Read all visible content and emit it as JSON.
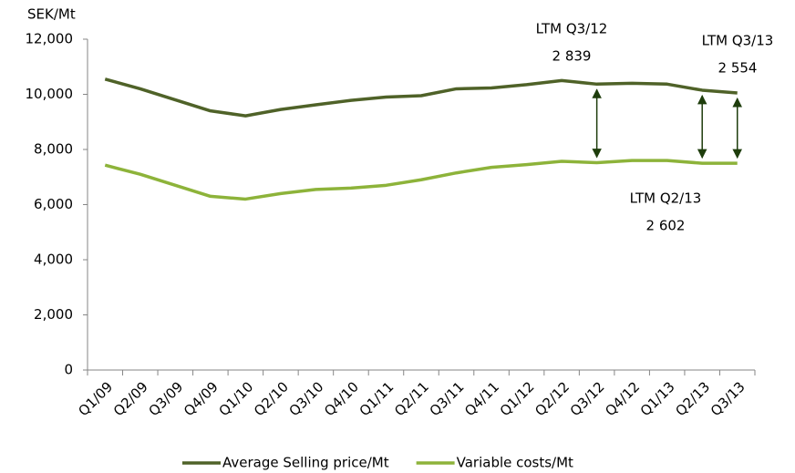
{
  "chart_data": {
    "type": "line",
    "unit_label": "SEK/Mt",
    "categories": [
      "Q1/09",
      "Q2/09",
      "Q3/09",
      "Q4/09",
      "Q1/10",
      "Q2/10",
      "Q3/10",
      "Q4/10",
      "Q1/11",
      "Q2/11",
      "Q3/11",
      "Q4/11",
      "Q1/12",
      "Q2/12",
      "Q3/12",
      "Q4/12",
      "Q1/13",
      "Q2/13",
      "Q3/13"
    ],
    "series": [
      {
        "name": "Average Selling price/Mt",
        "color": "#4f6228",
        "values": [
          10550,
          10200,
          9800,
          9400,
          9220,
          9450,
          9620,
          9780,
          9900,
          9950,
          10200,
          10230,
          10350,
          10500,
          10370,
          10400,
          10370,
          10150,
          10050
        ]
      },
      {
        "name": "Variable costs/Mt",
        "color": "#8db33a",
        "values": [
          7430,
          7100,
          6700,
          6300,
          6200,
          6400,
          6550,
          6600,
          6700,
          6900,
          7150,
          7350,
          7450,
          7570,
          7520,
          7600,
          7600,
          7500,
          7500
        ]
      }
    ],
    "ylim": [
      0,
      12000
    ],
    "yticks": [
      0,
      {
        "value": 2000,
        "label": "2,000"
      },
      {
        "value": 4000,
        "label": "4,000"
      },
      {
        "value": 6000,
        "label": "6,000"
      },
      {
        "value": 8000,
        "label": "8,000"
      },
      {
        "value": 10000,
        "label": "10,000"
      },
      {
        "value": 12000,
        "label": "12,000"
      }
    ],
    "annotations": [
      {
        "text": "LTM Q3/12",
        "value": {
          "value": 2839,
          "label": "2 839"
        }
      },
      {
        "text": "LTM Q2/13",
        "value": {
          "value": 2602,
          "label": "2 602"
        }
      },
      {
        "text": "LTM Q3/13",
        "value": {
          "value": 2554,
          "label": "2 554"
        }
      }
    ],
    "legend": "bottom"
  }
}
